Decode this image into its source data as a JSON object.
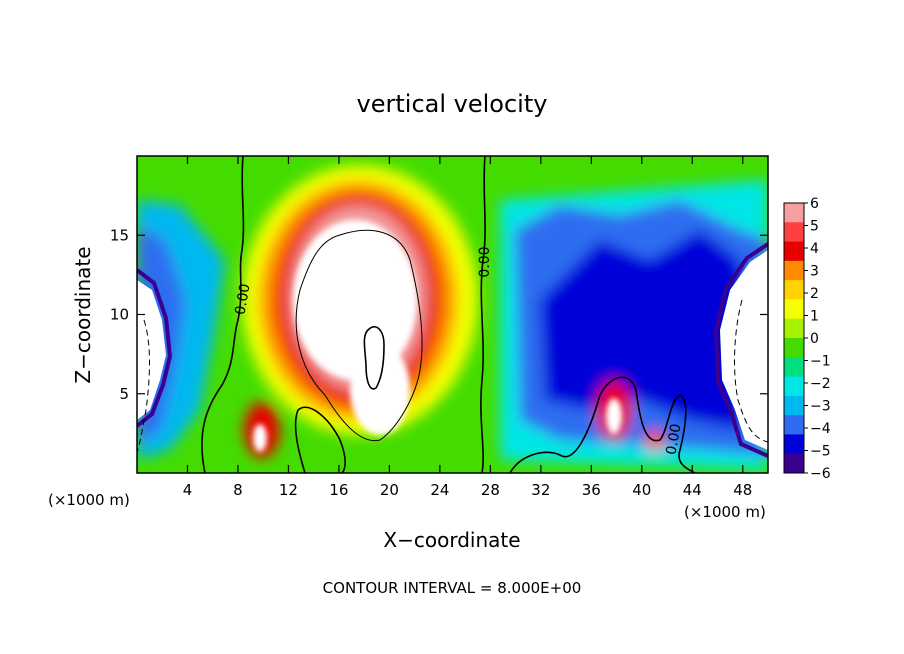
{
  "chart_data": {
    "type": "heatmap",
    "title": "vertical velocity",
    "xlabel": "X−coordinate",
    "ylabel": "Z−coordinate",
    "xunit_left": "(×1000 m)",
    "xunit_right": "(×1000 m)",
    "footer": "CONTOUR INTERVAL = 8.000E+00",
    "xlim": [
      0,
      50
    ],
    "ylim": [
      0,
      20
    ],
    "x_ticks": [
      4,
      8,
      12,
      16,
      20,
      24,
      28,
      32,
      36,
      40,
      44,
      48
    ],
    "y_ticks": [
      5,
      10,
      15
    ],
    "colorbar": {
      "levels": [
        6,
        5,
        4,
        3,
        2,
        1,
        0,
        -1,
        -2,
        -3,
        -4,
        -5,
        -6
      ],
      "colors": [
        "#f4a0a0",
        "#ff4040",
        "#e80000",
        "#ff8a00",
        "#ffd200",
        "#f4ff00",
        "#a6f000",
        "#44dc00",
        "#00e080",
        "#00e6e6",
        "#00b8f0",
        "#2f6df0",
        "#0000d8",
        "#3a0090"
      ]
    },
    "contour_labels": [
      {
        "text": "0.00",
        "x": 7.5,
        "z": 12.0
      },
      {
        "text": "0.00",
        "x": 27.0,
        "z": 13.5
      },
      {
        "text": "0.00",
        "x": 42.5,
        "z": 2.0
      }
    ],
    "features": [
      {
        "kind": "updraft_core",
        "x_center": 18.5,
        "z_center": 8.5,
        "value_above": 6
      },
      {
        "kind": "downdraft",
        "x_center": 2.0,
        "z_center": 10.0,
        "value_below": -6
      },
      {
        "kind": "downdraft",
        "x_center": 47.5,
        "z_center": 9.0,
        "value_below": -6
      }
    ]
  }
}
